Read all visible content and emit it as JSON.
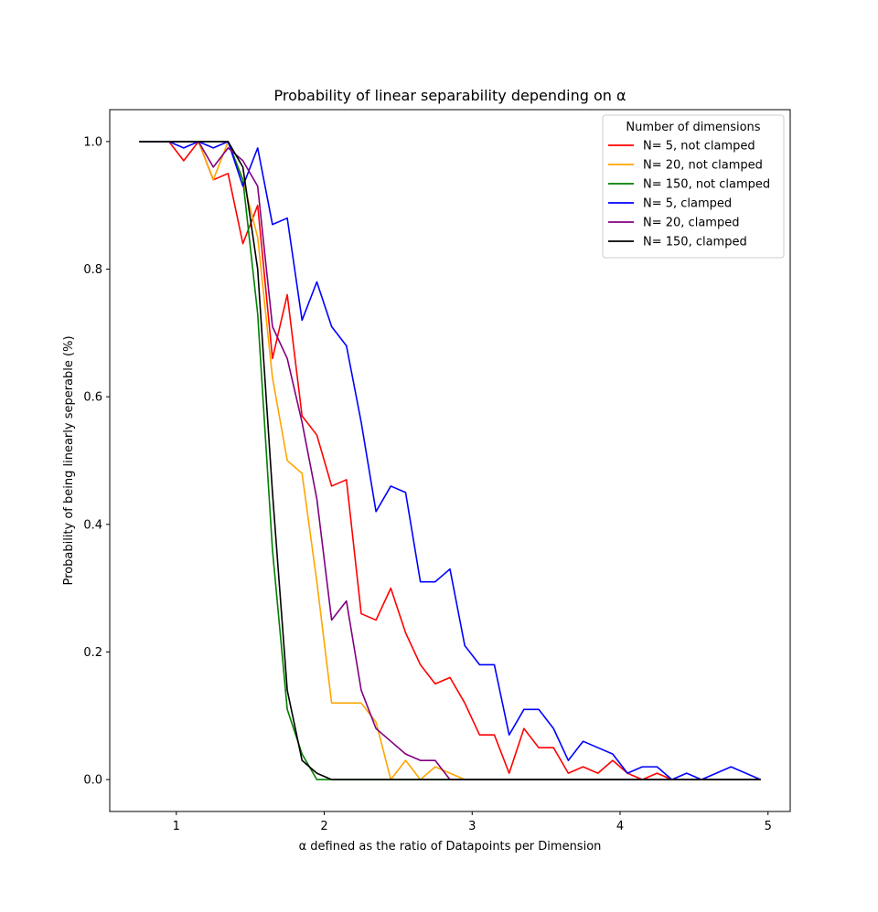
{
  "chart_data": {
    "type": "line",
    "title": "Probability of linear separability depending on α",
    "xlabel": "α defined as the ratio of Datapoints per Dimension",
    "ylabel": "Probability of being linearly seperable (%)",
    "xlim": [
      0.55,
      5.15
    ],
    "ylim": [
      -0.05,
      1.05
    ],
    "x_ticks": [
      1,
      2,
      3,
      4,
      5
    ],
    "y_ticks": [
      0.0,
      0.2,
      0.4,
      0.6,
      0.8,
      1.0
    ],
    "x_tick_labels": [
      "1",
      "2",
      "3",
      "4",
      "5"
    ],
    "y_tick_labels": [
      "0.0",
      "0.2",
      "0.4",
      "0.6",
      "0.8",
      "1.0"
    ],
    "grid": false,
    "legend_title": "Number of dimensions",
    "legend_position": "top-right",
    "x": [
      0.75,
      0.85,
      0.95,
      1.05,
      1.15,
      1.25,
      1.35,
      1.45,
      1.55,
      1.65,
      1.75,
      1.85,
      1.95,
      2.05,
      2.15,
      2.25,
      2.35,
      2.45,
      2.55,
      2.65,
      2.75,
      2.85,
      2.95,
      3.05,
      3.15,
      3.25,
      3.35,
      3.45,
      3.55,
      3.65,
      3.75,
      3.85,
      3.95,
      4.05,
      4.15,
      4.25,
      4.35,
      4.45,
      4.55,
      4.65,
      4.75,
      4.85,
      4.95
    ],
    "series": [
      {
        "name": "N= 5, not clamped",
        "color": "#ff0000",
        "values": [
          1.0,
          1.0,
          1.0,
          0.97,
          1.0,
          0.94,
          0.95,
          0.84,
          0.9,
          0.66,
          0.76,
          0.57,
          0.54,
          0.46,
          0.47,
          0.26,
          0.25,
          0.3,
          0.23,
          0.18,
          0.15,
          0.16,
          0.12,
          0.07,
          0.07,
          0.01,
          0.08,
          0.05,
          0.05,
          0.01,
          0.02,
          0.01,
          0.03,
          0.01,
          0.0,
          0.01,
          0.0,
          0.0,
          0.0,
          0.0,
          0.0,
          0.0,
          0.0
        ]
      },
      {
        "name": "N= 20, not clamped",
        "color": "#ffa500",
        "values": [
          1.0,
          1.0,
          1.0,
          1.0,
          1.0,
          0.94,
          1.0,
          0.94,
          0.85,
          0.63,
          0.5,
          0.48,
          0.31,
          0.12,
          0.12,
          0.12,
          0.09,
          0.0,
          0.03,
          0.0,
          0.02,
          0.01,
          0.0,
          0.0,
          0.0,
          0.0,
          0.0,
          0.0,
          0.0,
          0.0,
          0.0,
          0.0,
          0.0,
          0.0,
          0.0,
          0.0,
          0.0,
          0.0,
          0.0,
          0.0,
          0.0,
          0.0,
          0.0
        ]
      },
      {
        "name": "N= 150, not clamped",
        "color": "#008000",
        "values": [
          1.0,
          1.0,
          1.0,
          1.0,
          1.0,
          1.0,
          1.0,
          0.94,
          0.73,
          0.36,
          0.11,
          0.04,
          0.0,
          0.0,
          0.0,
          0.0,
          0.0,
          0.0,
          0.0,
          0.0,
          0.0,
          0.0,
          0.0,
          0.0,
          0.0,
          0.0,
          0.0,
          0.0,
          0.0,
          0.0,
          0.0,
          0.0,
          0.0,
          0.0,
          0.0,
          0.0,
          0.0,
          0.0,
          0.0,
          0.0,
          0.0,
          0.0,
          0.0
        ]
      },
      {
        "name": "N= 5, clamped",
        "color": "#0000ff",
        "values": [
          1.0,
          1.0,
          1.0,
          0.99,
          1.0,
          0.99,
          1.0,
          0.93,
          0.99,
          0.87,
          0.88,
          0.72,
          0.78,
          0.71,
          0.68,
          0.56,
          0.42,
          0.46,
          0.45,
          0.31,
          0.31,
          0.33,
          0.21,
          0.18,
          0.18,
          0.07,
          0.11,
          0.11,
          0.08,
          0.03,
          0.06,
          0.05,
          0.04,
          0.01,
          0.02,
          0.02,
          0.0,
          0.01,
          0.0,
          0.01,
          0.02,
          0.01,
          0.0
        ]
      },
      {
        "name": "N= 20, clamped",
        "color": "#800080",
        "values": [
          1.0,
          1.0,
          1.0,
          1.0,
          1.0,
          0.96,
          0.99,
          0.97,
          0.93,
          0.71,
          0.66,
          0.56,
          0.44,
          0.25,
          0.28,
          0.14,
          0.08,
          0.06,
          0.04,
          0.03,
          0.03,
          0.0,
          0.0,
          0.0,
          0.0,
          0.0,
          0.0,
          0.0,
          0.0,
          0.0,
          0.0,
          0.0,
          0.0,
          0.0,
          0.0,
          0.0,
          0.0,
          0.0,
          0.0,
          0.0,
          0.0,
          0.0,
          0.0
        ]
      },
      {
        "name": "N= 150, clamped",
        "color": "#000000",
        "values": [
          1.0,
          1.0,
          1.0,
          1.0,
          1.0,
          1.0,
          1.0,
          0.96,
          0.8,
          0.45,
          0.14,
          0.03,
          0.01,
          0.0,
          0.0,
          0.0,
          0.0,
          0.0,
          0.0,
          0.0,
          0.0,
          0.0,
          0.0,
          0.0,
          0.0,
          0.0,
          0.0,
          0.0,
          0.0,
          0.0,
          0.0,
          0.0,
          0.0,
          0.0,
          0.0,
          0.0,
          0.0,
          0.0,
          0.0,
          0.0,
          0.0,
          0.0,
          0.0
        ]
      }
    ]
  }
}
